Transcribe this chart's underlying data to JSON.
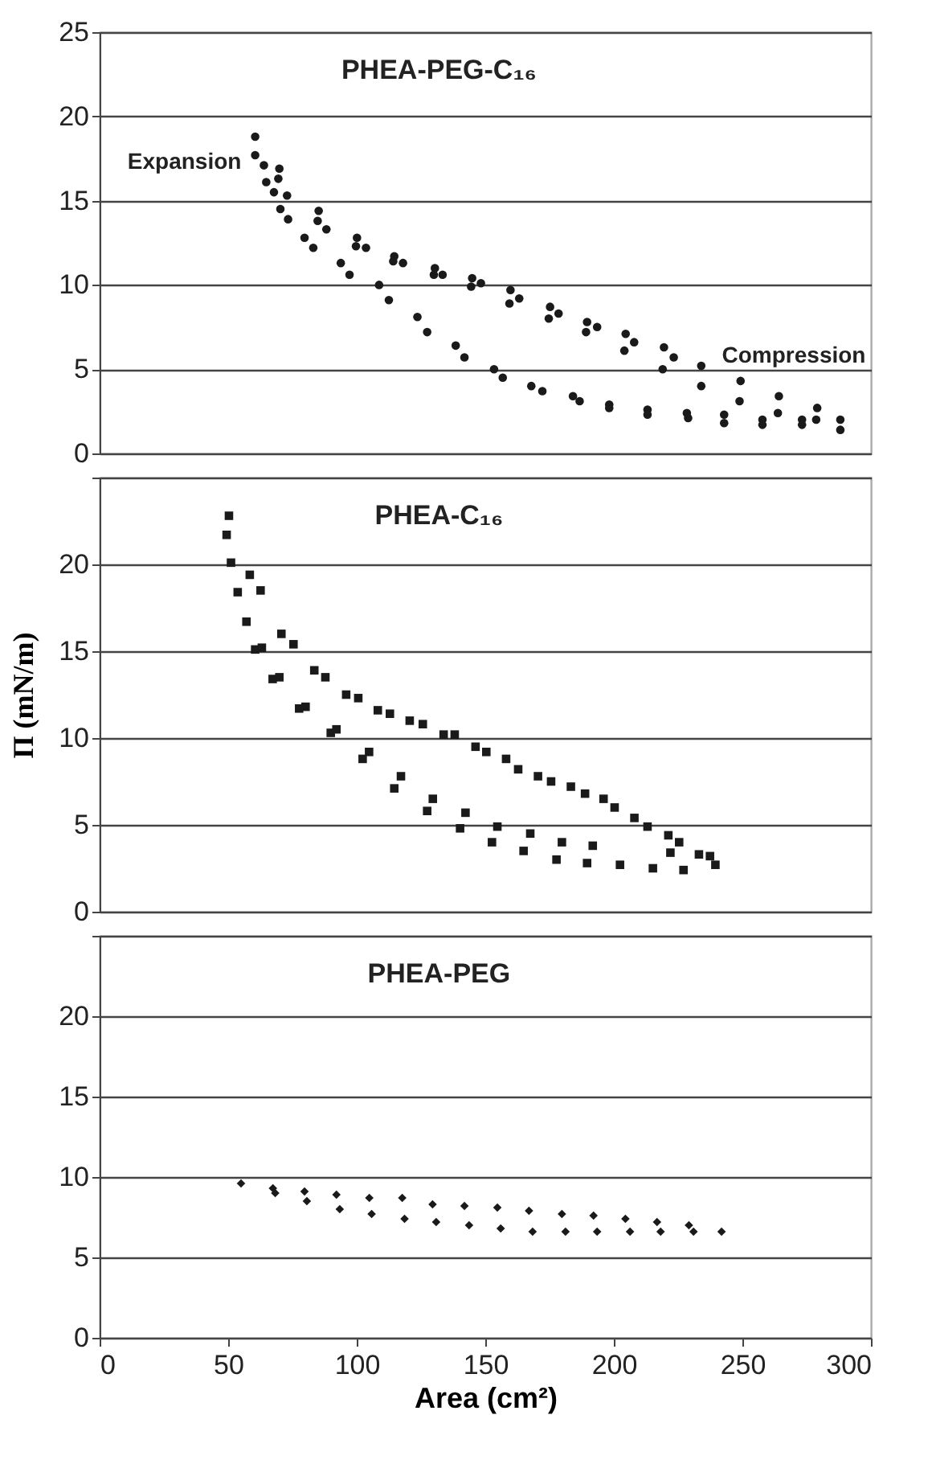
{
  "chart_data": [
    {
      "type": "scatter",
      "title": "PHEA-PEG-C₁₆",
      "marker": "circle",
      "grid": "y",
      "tick_labels": "y",
      "xlim": [
        0,
        300
      ],
      "ylim": [
        0,
        25
      ],
      "yticks": [
        0,
        5,
        10,
        15,
        20,
        25
      ],
      "annotations": [
        "Expansion",
        "Compression"
      ],
      "series": [
        {
          "color": "#1a1a1a",
          "x": [
            60.5,
            60.5,
            63.9,
            64.8,
            69.9,
            69.5,
            67.8,
            72.9,
            70.3,
            73.3,
            85.2,
            84.8,
            88.2,
            79.7,
            83.1,
            100.1,
            99.7,
            103.6,
            93.8,
            97.2,
            114.6,
            114.2,
            118.0,
            108.7,
            112.5,
            130.4,
            130.0,
            133.4,
            123.6,
            127.4,
            144.9,
            144.5,
            148.3,
            138.5,
            141.9,
            159.8,
            159.4,
            163.2,
            153.4,
            156.8,
            175.2,
            174.7,
            178.5,
            167.9,
            172.2,
            189.6,
            189.2,
            193.5,
            184.1,
            186.7,
            204.6,
            204.1,
            207.9,
            198.2,
            198.2,
            219.5,
            219.0,
            223.3,
            213.1,
            213.1,
            234.0,
            234.0,
            228.4,
            228.9,
            249.3,
            248.9,
            242.9,
            242.9,
            264.2,
            263.8,
            257.8,
            257.8,
            279.1,
            278.7,
            273.2,
            273.2,
            288.1,
            288.1
          ],
          "values": [
            18.8,
            17.7,
            17.1,
            16.1,
            16.9,
            16.3,
            15.5,
            15.3,
            14.5,
            13.9,
            14.4,
            13.8,
            13.3,
            12.8,
            12.2,
            12.8,
            12.3,
            12.2,
            11.3,
            10.6,
            11.7,
            11.4,
            11.3,
            10.0,
            9.1,
            11.0,
            10.6,
            10.6,
            8.1,
            7.2,
            10.4,
            9.9,
            10.1,
            6.4,
            5.7,
            9.7,
            8.9,
            9.2,
            5.0,
            4.5,
            8.7,
            8.0,
            8.3,
            4.0,
            3.7,
            7.8,
            7.2,
            7.5,
            3.4,
            3.1,
            7.1,
            6.1,
            6.6,
            2.9,
            2.7,
            6.3,
            5.0,
            5.7,
            2.6,
            2.3,
            5.2,
            4.0,
            2.4,
            2.1,
            4.3,
            3.1,
            2.3,
            1.8,
            3.4,
            2.4,
            2.0,
            1.7,
            2.7,
            2.0,
            2.0,
            1.7,
            2.0,
            1.4
          ]
        }
      ]
    },
    {
      "type": "scatter",
      "title": "PHEA-C₁₆",
      "ylabel": "Π (mN/m)",
      "marker": "square",
      "grid": "y",
      "tick_labels": "y",
      "xlim": [
        0,
        300
      ],
      "ylim": [
        0,
        25
      ],
      "yticks": [
        0,
        5,
        10,
        15,
        20,
        {
          "value": 25,
          "label": null
        }
      ],
      "series": [
        {
          "color": "#1a1a1a",
          "x": [
            50.3,
            49.4,
            51.1,
            58.4,
            53.7,
            62.6,
            57.1,
            60.5,
            63.1,
            70.7,
            75.4,
            67.3,
            69.9,
            83.5,
            87.8,
            77.6,
            80.1,
            95.9,
            100.6,
            89.9,
            92.1,
            108.2,
            112.9,
            102.3,
            104.8,
            120.6,
            125.7,
            114.6,
            117.2,
            133.8,
            138.1,
            127.4,
            129.6,
            146.2,
            150.4,
            140.2,
            142.3,
            158.1,
            162.8,
            152.6,
            154.7,
            170.5,
            175.6,
            164.9,
            167.5,
            183.3,
            188.8,
            177.7,
            179.8,
            196.0,
            200.3,
            189.6,
            191.8,
            208.0,
            213.1,
            202.4,
            215.2,
            221.2,
            225.4,
            222.0,
            227.1,
            233.1,
            237.4,
            239.5
          ],
          "values": [
            22.8,
            21.7,
            20.1,
            19.4,
            18.4,
            18.5,
            16.7,
            15.1,
            15.2,
            16.0,
            15.4,
            13.4,
            13.5,
            13.9,
            13.5,
            11.7,
            11.8,
            12.5,
            12.3,
            10.3,
            10.5,
            11.6,
            11.4,
            8.8,
            9.2,
            11.0,
            10.8,
            7.1,
            7.8,
            10.2,
            10.2,
            5.8,
            6.5,
            9.5,
            9.2,
            4.8,
            5.7,
            8.8,
            8.2,
            4.0,
            4.9,
            7.8,
            7.5,
            3.5,
            4.5,
            7.2,
            6.8,
            3.0,
            4.0,
            6.5,
            6.0,
            2.8,
            3.8,
            5.4,
            4.9,
            2.7,
            2.5,
            4.4,
            4.0,
            3.4,
            2.4,
            3.3,
            3.2,
            2.7
          ]
        }
      ]
    },
    {
      "type": "scatter",
      "title": "PHEA-PEG",
      "xlabel": "Area (cm²)",
      "marker": "diamond",
      "grid": "y",
      "xlim": [
        0,
        300
      ],
      "xticks": [
        0,
        50,
        100,
        150,
        200,
        250,
        300
      ],
      "ylim": [
        0,
        25
      ],
      "yticks": [
        0,
        5,
        10,
        15,
        20,
        {
          "value": 25,
          "label": null
        }
      ],
      "series": [
        {
          "color": "#1a1a1a",
          "x": [
            55.0,
            67.4,
            68.3,
            79.7,
            80.6,
            92.1,
            93.4,
            104.9,
            105.8,
            117.7,
            118.6,
            129.5,
            130.9,
            141.9,
            143.7,
            154.7,
            156.0,
            167.0,
            168.4,
            179.8,
            181.2,
            192.1,
            193.5,
            204.5,
            206.3,
            216.8,
            218.2,
            229.2,
            231.0,
            241.9
          ],
          "values": [
            9.6,
            9.3,
            9.0,
            9.1,
            8.5,
            8.9,
            8.0,
            8.7,
            7.7,
            8.7,
            7.4,
            8.3,
            7.2,
            8.2,
            7.0,
            8.1,
            6.8,
            7.9,
            6.6,
            7.7,
            6.6,
            7.6,
            6.6,
            7.4,
            6.6,
            7.2,
            6.6,
            7.0,
            6.6,
            6.6
          ]
        }
      ]
    }
  ]
}
